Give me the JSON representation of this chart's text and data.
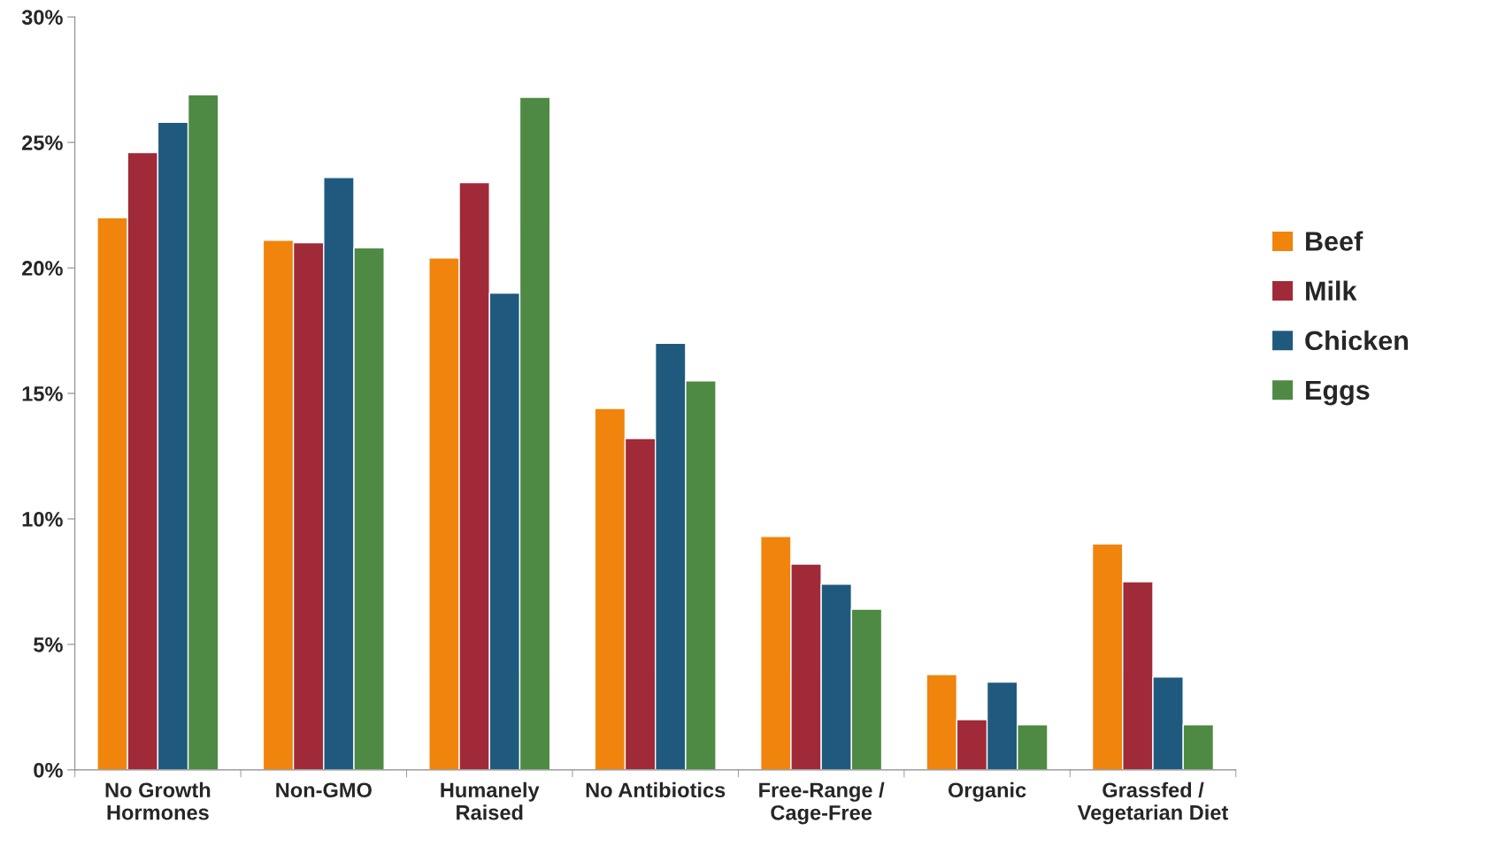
{
  "chart_data": {
    "type": "bar",
    "categories": [
      "No Growth\nHormones",
      "Non-GMO",
      "Humanely\nRaised",
      "No Antibiotics",
      "Free-Range /\nCage-Free",
      "Organic",
      "Grassfed /\nVegetarian Diet"
    ],
    "series": [
      {
        "name": "Beef",
        "color": "#f0840c",
        "values": [
          22.0,
          21.1,
          20.4,
          14.4,
          9.3,
          3.8,
          9.0
        ]
      },
      {
        "name": "Milk",
        "color": "#a12a38",
        "values": [
          24.6,
          21.0,
          23.4,
          13.2,
          8.2,
          2.0,
          7.5
        ]
      },
      {
        "name": "Chicken",
        "color": "#1f5a7e",
        "values": [
          25.8,
          23.6,
          19.0,
          17.0,
          7.4,
          3.5,
          3.7
        ]
      },
      {
        "name": "Eggs",
        "color": "#4e8a43",
        "values": [
          26.9,
          20.8,
          26.8,
          15.5,
          6.4,
          1.8,
          1.8
        ]
      }
    ],
    "ylim": [
      0,
      30
    ],
    "yticks": [
      {
        "value": 0,
        "label": "0%"
      },
      {
        "value": 5,
        "label": "5%"
      },
      {
        "value": 10,
        "label": "10%"
      },
      {
        "value": 15,
        "label": "15%"
      },
      {
        "value": 20,
        "label": "20%"
      },
      {
        "value": 25,
        "label": "25%"
      },
      {
        "value": 30,
        "label": "30%"
      }
    ],
    "grid": false,
    "legend": "right"
  }
}
